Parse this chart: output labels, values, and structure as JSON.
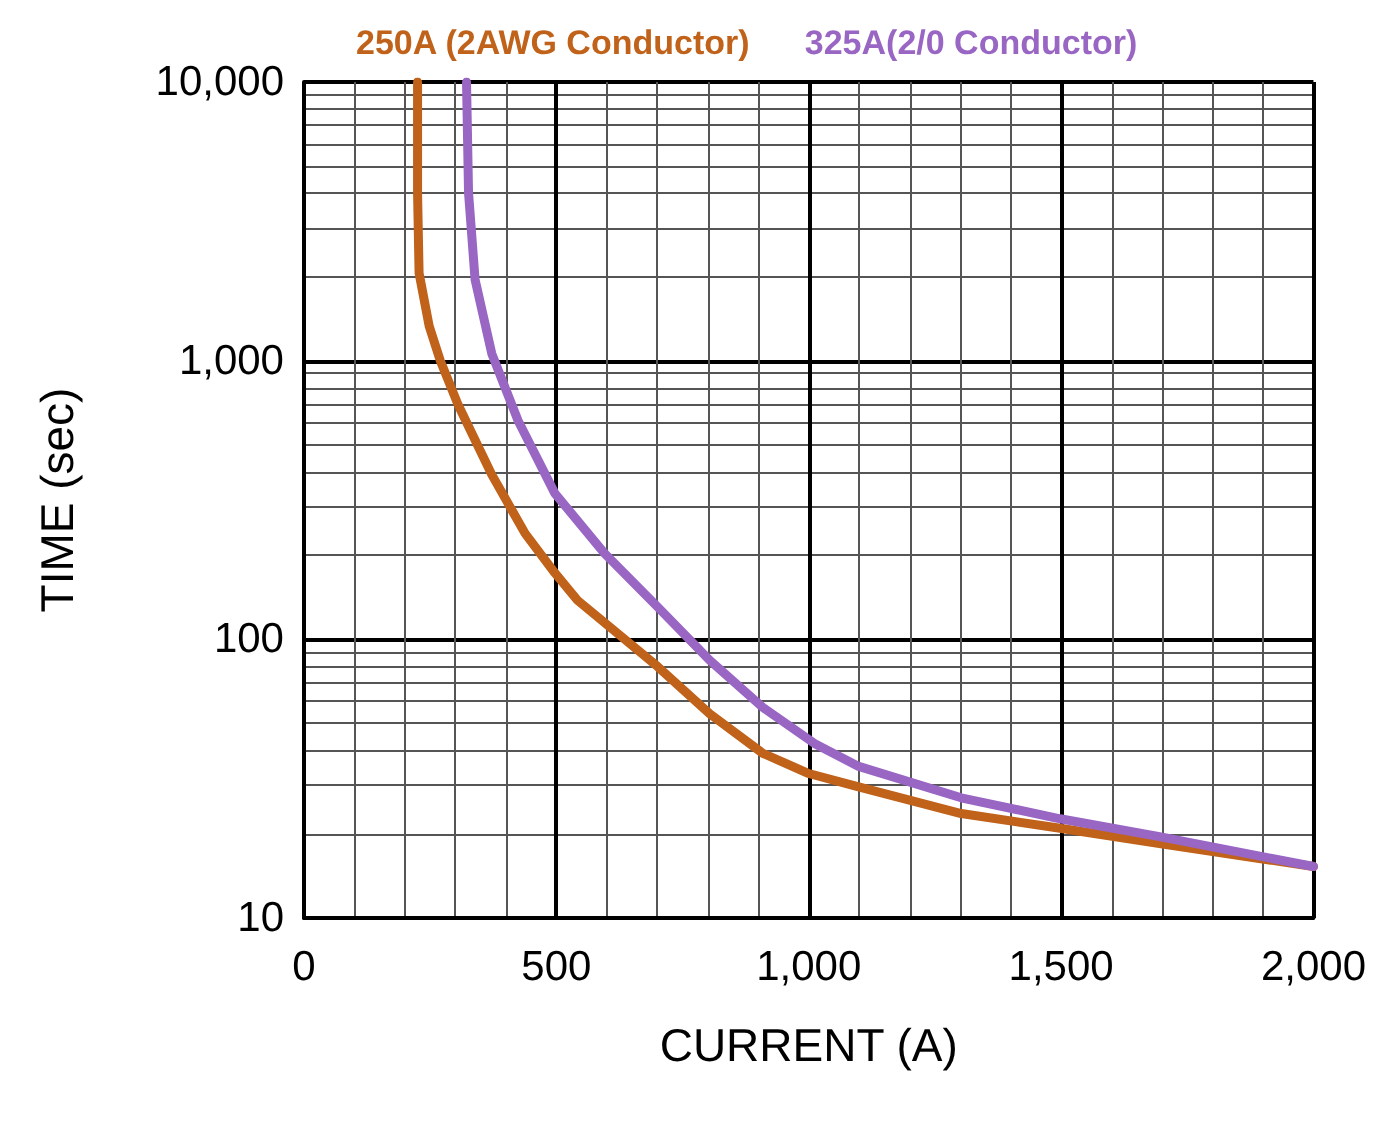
{
  "chart_data": {
    "type": "line",
    "xlabel": "CURRENT (A)",
    "ylabel": "TIME (sec)",
    "series": [
      {
        "name": "250A (2AWG Conductor)",
        "color": "#c0621a",
        "x": [
          225,
          225,
          228,
          248,
          270,
          306,
          372,
          438,
          497,
          542,
          700,
          804,
          909,
          1000,
          1097,
          1302,
          1498,
          1695,
          2000
        ],
        "values": [
          10000,
          4000,
          2060,
          1330,
          1000,
          690,
          390,
          240,
          173,
          138,
          80,
          54,
          39,
          33,
          29.6,
          23.7,
          21,
          18.5,
          15.3
        ]
      },
      {
        "name": "325A(2/0 Conductor)",
        "color": "#9966c4",
        "x": [
          322,
          326,
          339,
          372,
          424,
          497,
          595,
          700,
          804,
          909,
          1014,
          1099,
          1302,
          1498,
          1695,
          2000
        ],
        "values": [
          10000,
          4000,
          1950,
          1060,
          610,
          334,
          204,
          131,
          84,
          57,
          42,
          35,
          27,
          22.7,
          19.6,
          15.3
        ]
      }
    ],
    "xlim": [
      0,
      2000
    ],
    "xticks": [
      0,
      500,
      {
        "value": 1000,
        "label": "1,000"
      },
      {
        "value": 1500,
        "label": "1,500"
      },
      {
        "value": 2000,
        "label": "2,000"
      }
    ],
    "ylim": [
      10,
      10000
    ],
    "yticks": [
      10,
      100,
      {
        "value": 1000,
        "label": "1,000"
      },
      {
        "value": 10000,
        "label": "10,000"
      }
    ],
    "log": "y",
    "grid": true,
    "legend": "top"
  }
}
